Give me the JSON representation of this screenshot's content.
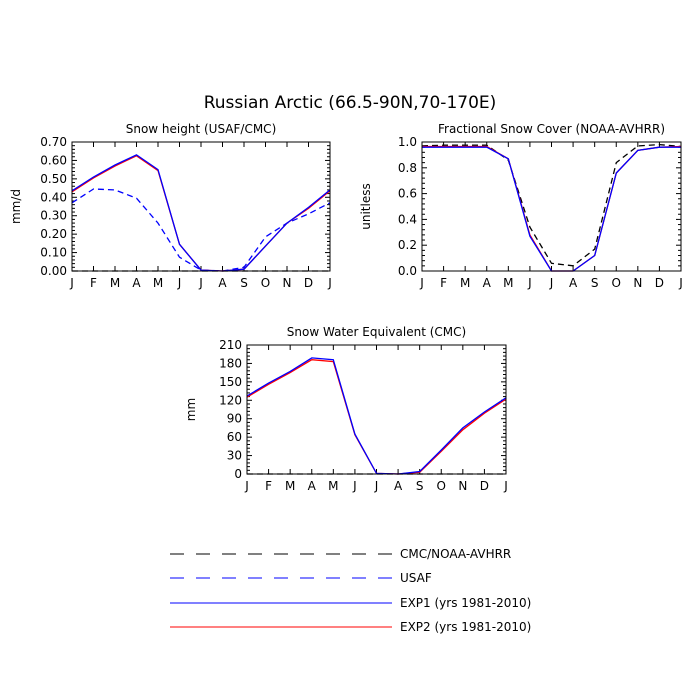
{
  "figure_title": "Russian Arctic (66.5-90N,70-170E)",
  "months": [
    "J",
    "F",
    "M",
    "A",
    "M",
    "J",
    "J",
    "A",
    "S",
    "O",
    "N",
    "D",
    "J"
  ],
  "legend": [
    {
      "label": "CMC/NOAA-AVHRR",
      "color": "#000000",
      "dash": true
    },
    {
      "label": "USAF",
      "color": "#0000ff",
      "dash": true
    },
    {
      "label": "EXP1 (yrs 1981-2010)",
      "color": "#0000ff",
      "dash": false
    },
    {
      "label": "EXP2 (yrs 1981-2010)",
      "color": "#ff0000",
      "dash": false
    }
  ],
  "chart_data": [
    {
      "type": "line",
      "title": "Snow height (USAF/CMC)",
      "ylabel": "mm/d",
      "ylim": [
        0,
        0.7
      ],
      "yticks": [
        "0.00",
        "0.10",
        "0.20",
        "0.30",
        "0.40",
        "0.50",
        "0.60",
        "0.70"
      ],
      "categories": [
        "J",
        "F",
        "M",
        "A",
        "M",
        "J",
        "J",
        "A",
        "S",
        "O",
        "N",
        "D",
        "J"
      ],
      "series": [
        {
          "name": "CMC/NOAA-AVHRR",
          "color": "#000000",
          "dash": true,
          "values": [
            0,
            0,
            0,
            0,
            0,
            0,
            0,
            0,
            0,
            0,
            0,
            0,
            0
          ]
        },
        {
          "name": "USAF",
          "color": "#0000ff",
          "dash": true,
          "values": [
            0.37,
            0.445,
            0.44,
            0.395,
            0.26,
            0.075,
            0.005,
            0.0,
            0.02,
            0.185,
            0.26,
            0.31,
            0.37
          ]
        },
        {
          "name": "EXP2 (yrs 1981-2010)",
          "color": "#ff0000",
          "dash": false,
          "values": [
            0.43,
            0.505,
            0.57,
            0.625,
            0.545,
            0.145,
            0.005,
            0.0,
            0.01,
            0.135,
            0.26,
            0.34,
            0.435
          ]
        },
        {
          "name": "EXP1 (yrs 1981-2010)",
          "color": "#0000ff",
          "dash": false,
          "values": [
            0.435,
            0.51,
            0.575,
            0.63,
            0.55,
            0.145,
            0.005,
            0.0,
            0.01,
            0.135,
            0.26,
            0.345,
            0.44
          ]
        }
      ]
    },
    {
      "type": "line",
      "title": "Fractional Snow Cover (NOAA-AVHRR)",
      "ylabel": "unitless",
      "ylim": [
        0,
        1
      ],
      "yticks": [
        "0.0",
        "0.2",
        "0.4",
        "0.6",
        "0.8",
        "1.0"
      ],
      "categories": [
        "J",
        "F",
        "M",
        "A",
        "M",
        "J",
        "J",
        "A",
        "S",
        "O",
        "N",
        "D",
        "J"
      ],
      "series": [
        {
          "name": "CMC/NOAA-AVHRR",
          "color": "#000000",
          "dash": true,
          "values": [
            0.97,
            0.975,
            0.975,
            0.975,
            0.86,
            0.34,
            0.06,
            0.04,
            0.17,
            0.84,
            0.97,
            0.98,
            0.965
          ]
        },
        {
          "name": "EXP2 (yrs 1981-2010)",
          "color": "#ff0000",
          "dash": false,
          "values": [
            0.965,
            0.965,
            0.965,
            0.965,
            0.87,
            0.28,
            0.0,
            0.0,
            0.12,
            0.76,
            0.935,
            0.96,
            0.965
          ]
        },
        {
          "name": "EXP1 (yrs 1981-2010)",
          "color": "#0000ff",
          "dash": false,
          "values": [
            0.96,
            0.96,
            0.96,
            0.96,
            0.87,
            0.27,
            0.0,
            0.0,
            0.12,
            0.76,
            0.935,
            0.96,
            0.96
          ]
        }
      ]
    },
    {
      "type": "line",
      "title": "Snow Water Equivalent (CMC)",
      "ylabel": "mm",
      "ylim": [
        0,
        210
      ],
      "yticks": [
        "0",
        "30",
        "60",
        "90",
        "120",
        "150",
        "180",
        "210"
      ],
      "categories": [
        "J",
        "F",
        "M",
        "A",
        "M",
        "J",
        "J",
        "A",
        "S",
        "O",
        "N",
        "D",
        "J"
      ],
      "series": [
        {
          "name": "CMC/NOAA-AVHRR",
          "color": "#000000",
          "dash": true,
          "values": [
            0,
            0,
            0,
            0,
            0,
            0,
            0,
            0,
            0,
            0,
            0,
            0,
            0
          ]
        },
        {
          "name": "EXP2 (yrs 1981-2010)",
          "color": "#ff0000",
          "dash": false,
          "values": [
            125,
            146,
            165,
            186,
            183,
            64,
            1,
            0,
            3,
            37,
            72,
            99,
            122
          ]
        },
        {
          "name": "EXP1 (yrs 1981-2010)",
          "color": "#0000ff",
          "dash": false,
          "values": [
            127,
            148,
            167,
            189,
            186,
            65,
            1,
            0,
            4,
            39,
            75,
            101,
            124
          ]
        }
      ]
    }
  ]
}
